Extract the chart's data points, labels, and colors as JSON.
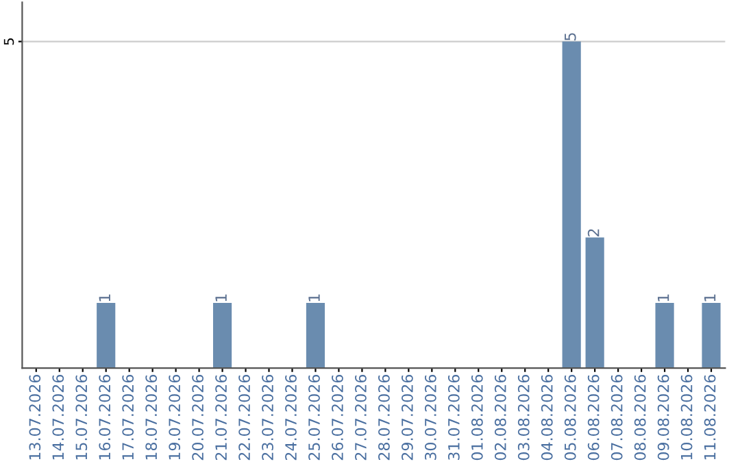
{
  "chart_data": {
    "type": "bar",
    "categories": [
      "13.07.2026",
      "14.07.2026",
      "15.07.2026",
      "16.07.2026",
      "17.07.2026",
      "18.07.2026",
      "19.07.2026",
      "20.07.2026",
      "21.07.2026",
      "22.07.2026",
      "23.07.2026",
      "24.07.2026",
      "25.07.2026",
      "26.07.2026",
      "27.07.2026",
      "28.07.2026",
      "29.07.2026",
      "30.07.2026",
      "31.07.2026",
      "01.08.2026",
      "02.08.2026",
      "03.08.2026",
      "04.08.2026",
      "05.08.2026",
      "06.08.2026",
      "07.08.2026",
      "08.08.2026",
      "09.08.2026",
      "10.08.2026",
      "11.08.2026"
    ],
    "values": [
      0,
      0,
      0,
      1,
      0,
      0,
      0,
      0,
      1,
      0,
      0,
      0,
      1,
      0,
      0,
      0,
      0,
      0,
      0,
      0,
      0,
      0,
      0,
      5,
      2,
      0,
      0,
      1,
      0,
      1
    ],
    "value_labels": [
      null,
      null,
      null,
      "1",
      null,
      null,
      null,
      null,
      "1",
      null,
      null,
      null,
      "1",
      null,
      null,
      null,
      null,
      null,
      null,
      null,
      null,
      null,
      null,
      "5",
      "2",
      null,
      null,
      "1",
      null,
      "1"
    ],
    "color": "#6a8caf",
    "ylim": [
      0,
      5.6
    ],
    "yticks": [
      5
    ],
    "grid": "y"
  }
}
